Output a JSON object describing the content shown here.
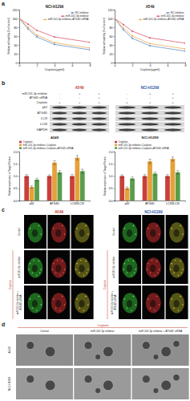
{
  "panel_labels": [
    "a",
    "b",
    "c",
    "d"
  ],
  "chart_data": [
    {
      "type": "line",
      "title": "NCI-H1299",
      "x_label": "Cisplatin(μg/ml)",
      "y_label": "Relative cell viability (% of control)",
      "x": [
        0,
        1,
        2,
        4,
        8
      ],
      "series": [
        {
          "name": "NC inhibitor",
          "color": "#4f81bd",
          "values": [
            100,
            76,
            58,
            41,
            29
          ]
        },
        {
          "name": "miR-101-3p inhibitor",
          "color": "#d6435a",
          "values": [
            100,
            87,
            73,
            58,
            46
          ]
        },
        {
          "name": "miR-101-3p inhibitor+ATG4D siRNA",
          "color": "#e9a03b",
          "values": [
            100,
            80,
            62,
            45,
            33
          ]
        }
      ],
      "xlim": [
        0,
        8
      ],
      "xticks": [
        0,
        2,
        4,
        6,
        8
      ],
      "ylim": [
        0,
        120
      ],
      "yticks": [
        0,
        20,
        40,
        60,
        80,
        100,
        120
      ],
      "marker": "circle",
      "legend": "upper right"
    },
    {
      "type": "line",
      "title": "A549",
      "x_label": "Cisplatin(μg/ml)",
      "y_label": "Relative cell viability (% of control)",
      "x": [
        0,
        1,
        2,
        4,
        8
      ],
      "series": [
        {
          "name": "NC inhibitor",
          "color": "#4f81bd",
          "values": [
            100,
            74,
            55,
            38,
            26
          ]
        },
        {
          "name": "miR-101-3p inhibitor",
          "color": "#d6435a",
          "values": [
            100,
            86,
            71,
            56,
            44
          ]
        },
        {
          "name": "miR-101-3p inhibitor+ATG4D siRNA",
          "color": "#e9a03b",
          "values": [
            100,
            78,
            60,
            43,
            31
          ]
        }
      ],
      "xlim": [
        0,
        8
      ],
      "xticks": [
        0,
        2,
        4,
        6,
        8
      ],
      "ylim": [
        0,
        120
      ],
      "yticks": [
        0,
        20,
        40,
        60,
        80,
        100,
        120
      ],
      "marker": "circle",
      "legend": "upper right"
    },
    {
      "type": "bar",
      "title": "A549",
      "y_label": "Relative expression of Target Protein",
      "categories": [
        "p62",
        "ATG4D",
        "LC3II/LC3I"
      ],
      "series": [
        {
          "name": "Cisplatin",
          "color": "#c9403a",
          "values": [
            1,
            1,
            1
          ],
          "errors": [
            0.06,
            0.05,
            0.07
          ]
        },
        {
          "name": "miR-101-3p inhibitor+Cisplatin",
          "color": "#e5a13a",
          "values": [
            0.55,
            1.55,
            1.75
          ],
          "errors": [
            0.05,
            0.08,
            0.09
          ]
        },
        {
          "name": "miR-101-3p inhibitor+Cisplatin+ATG4D siRNA",
          "color": "#5a9e4b",
          "values": [
            0.85,
            1.15,
            1.2
          ],
          "errors": [
            0.06,
            0.07,
            0.08
          ]
        }
      ],
      "ylim": [
        0,
        2
      ],
      "yticks": [
        {
          "value": 0,
          "label": "0.0"
        },
        0.5,
        {
          "value": 1,
          "label": "1.0"
        },
        1.5,
        {
          "value": 2,
          "label": "2.0"
        }
      ],
      "legend": "upper left"
    },
    {
      "type": "bar",
      "title": "NCI-H1299",
      "y_label": "Relative expression of Target Protein",
      "categories": [
        "p62",
        "ATG4D",
        "LC3II/LC3I"
      ],
      "series": [
        {
          "name": "Cisplatin",
          "color": "#c9403a",
          "values": [
            1,
            1,
            1
          ],
          "errors": [
            0.05,
            0.06,
            0.06
          ]
        },
        {
          "name": "miR-101-3p inhibitor+Cisplatin",
          "color": "#e5a13a",
          "values": [
            0.5,
            1.6,
            1.7
          ],
          "errors": [
            0.05,
            0.09,
            0.08
          ]
        },
        {
          "name": "miR-101-3p inhibitor+Cisplatin+ATG4D siRNA",
          "color": "#5a9e4b",
          "values": [
            0.9,
            1.1,
            1.15
          ],
          "errors": [
            0.06,
            0.06,
            0.07
          ]
        }
      ],
      "ylim": [
        0,
        2
      ],
      "yticks": [
        {
          "value": 0,
          "label": "0.0"
        },
        0.5,
        {
          "value": 1,
          "label": "1.0"
        },
        1.5,
        {
          "value": 2,
          "label": "2.0"
        }
      ],
      "legend": "upper left"
    }
  ],
  "blot": {
    "cell_lines": [
      "A549",
      "NCI-H1299"
    ],
    "conditions": [
      {
        "label": "miR-101-3p inhibitor",
        "signs": [
          "-",
          "+",
          "+"
        ]
      },
      {
        "label": "ATG4D siRNA",
        "signs": [
          "-",
          "-",
          "+"
        ]
      },
      {
        "label": "Cisplatin",
        "signs": [
          "+",
          "+",
          "+"
        ]
      }
    ],
    "proteins": [
      "p62",
      "ATG4D",
      "LC3I",
      "LC3II",
      "GAPDH"
    ]
  },
  "fluorescence": {
    "cell_lines": [
      "A549",
      "NCI-H1299"
    ],
    "group_label": "Cisplatin",
    "rows": [
      "Control",
      "miR-101-3p inhibitor",
      "miR-101-3p inhibitor + ATG4D siRNA"
    ]
  },
  "em": {
    "group_label": "Cisplatin",
    "columns": [
      "Control",
      "miR-101-3p inhibitor",
      "miR-101-3p inhibitor + ATG4D siRNA"
    ],
    "rows": [
      "A549",
      "NCI-H1299"
    ]
  }
}
